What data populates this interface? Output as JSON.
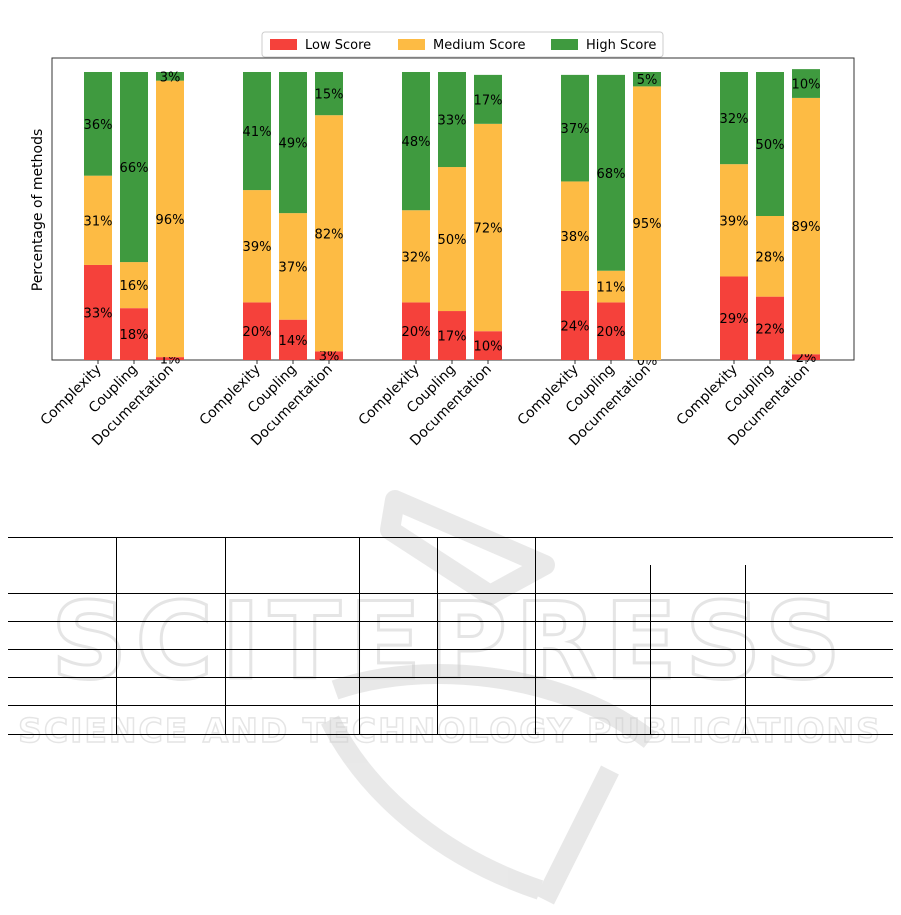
{
  "chart_data": {
    "type": "bar",
    "stacked": true,
    "ylabel": "Percentage of methods",
    "ylim": [
      0,
      100
    ],
    "grid": false,
    "legend_position": "top-center",
    "series": [
      {
        "name": "Low Score",
        "color": "#f5413b"
      },
      {
        "name": "Medium Score",
        "color": "#fdbb44"
      },
      {
        "name": "High Score",
        "color": "#3f9a3f"
      }
    ],
    "groups": [
      {
        "bars": [
          {
            "category": "Complexity",
            "values": [
              33,
              31,
              36
            ]
          },
          {
            "category": "Coupling",
            "values": [
              18,
              16,
              66
            ]
          },
          {
            "category": "Documentation",
            "values": [
              1,
              96,
              3
            ]
          }
        ]
      },
      {
        "bars": [
          {
            "category": "Complexity",
            "values": [
              20,
              39,
              41
            ]
          },
          {
            "category": "Coupling",
            "values": [
              14,
              37,
              49
            ]
          },
          {
            "category": "Documentation",
            "values": [
              3,
              82,
              15
            ]
          }
        ]
      },
      {
        "bars": [
          {
            "category": "Complexity",
            "values": [
              20,
              32,
              48
            ]
          },
          {
            "category": "Coupling",
            "values": [
              17,
              50,
              33
            ]
          },
          {
            "category": "Documentation",
            "values": [
              10,
              72,
              17
            ]
          }
        ]
      },
      {
        "bars": [
          {
            "category": "Complexity",
            "values": [
              24,
              38,
              37
            ]
          },
          {
            "category": "Coupling",
            "values": [
              20,
              11,
              68
            ]
          },
          {
            "category": "Documentation",
            "values": [
              0,
              95,
              5
            ]
          }
        ]
      },
      {
        "bars": [
          {
            "category": "Complexity",
            "values": [
              29,
              39,
              32
            ]
          },
          {
            "category": "Coupling",
            "values": [
              22,
              28,
              50
            ]
          },
          {
            "category": "Documentation",
            "values": [
              2,
              89,
              10
            ]
          }
        ]
      }
    ]
  },
  "watermark": {
    "main": "SCITEPRESS",
    "sub": "SCIENCE AND TECHNOLOGY PUBLICATIONS"
  },
  "table": {
    "rows": 5
  }
}
